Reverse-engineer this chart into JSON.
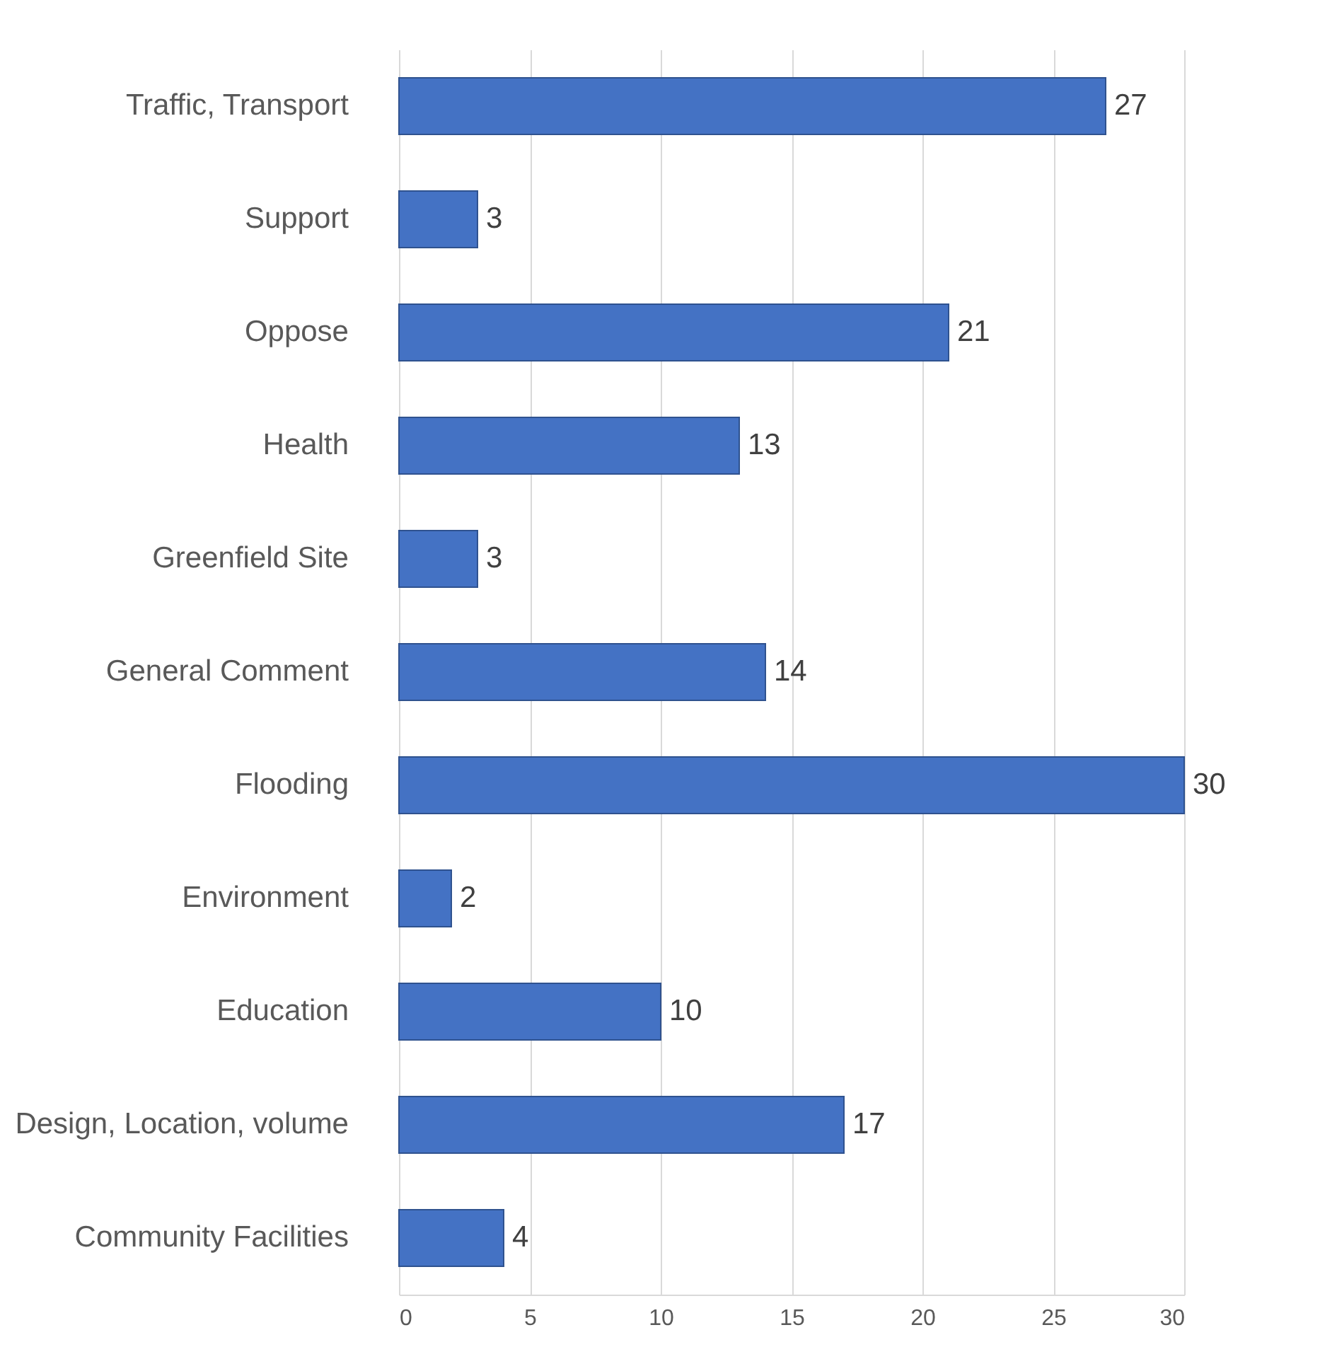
{
  "chart_data": {
    "type": "bar",
    "orientation": "horizontal",
    "categories": [
      "Traffic, Transport",
      "Support",
      "Oppose",
      "Health",
      "Greenfield Site",
      "General Comment",
      "Flooding",
      "Environment",
      "Education",
      "Design, Location, volume",
      "Community Facilities"
    ],
    "values": [
      27,
      3,
      21,
      13,
      3,
      14,
      30,
      2,
      10,
      17,
      4
    ],
    "color": "#4472c4",
    "xlim": [
      0,
      30
    ],
    "xticks": [
      0,
      5,
      10,
      15,
      20,
      25,
      30
    ],
    "grid": "x",
    "data_labels": true
  }
}
